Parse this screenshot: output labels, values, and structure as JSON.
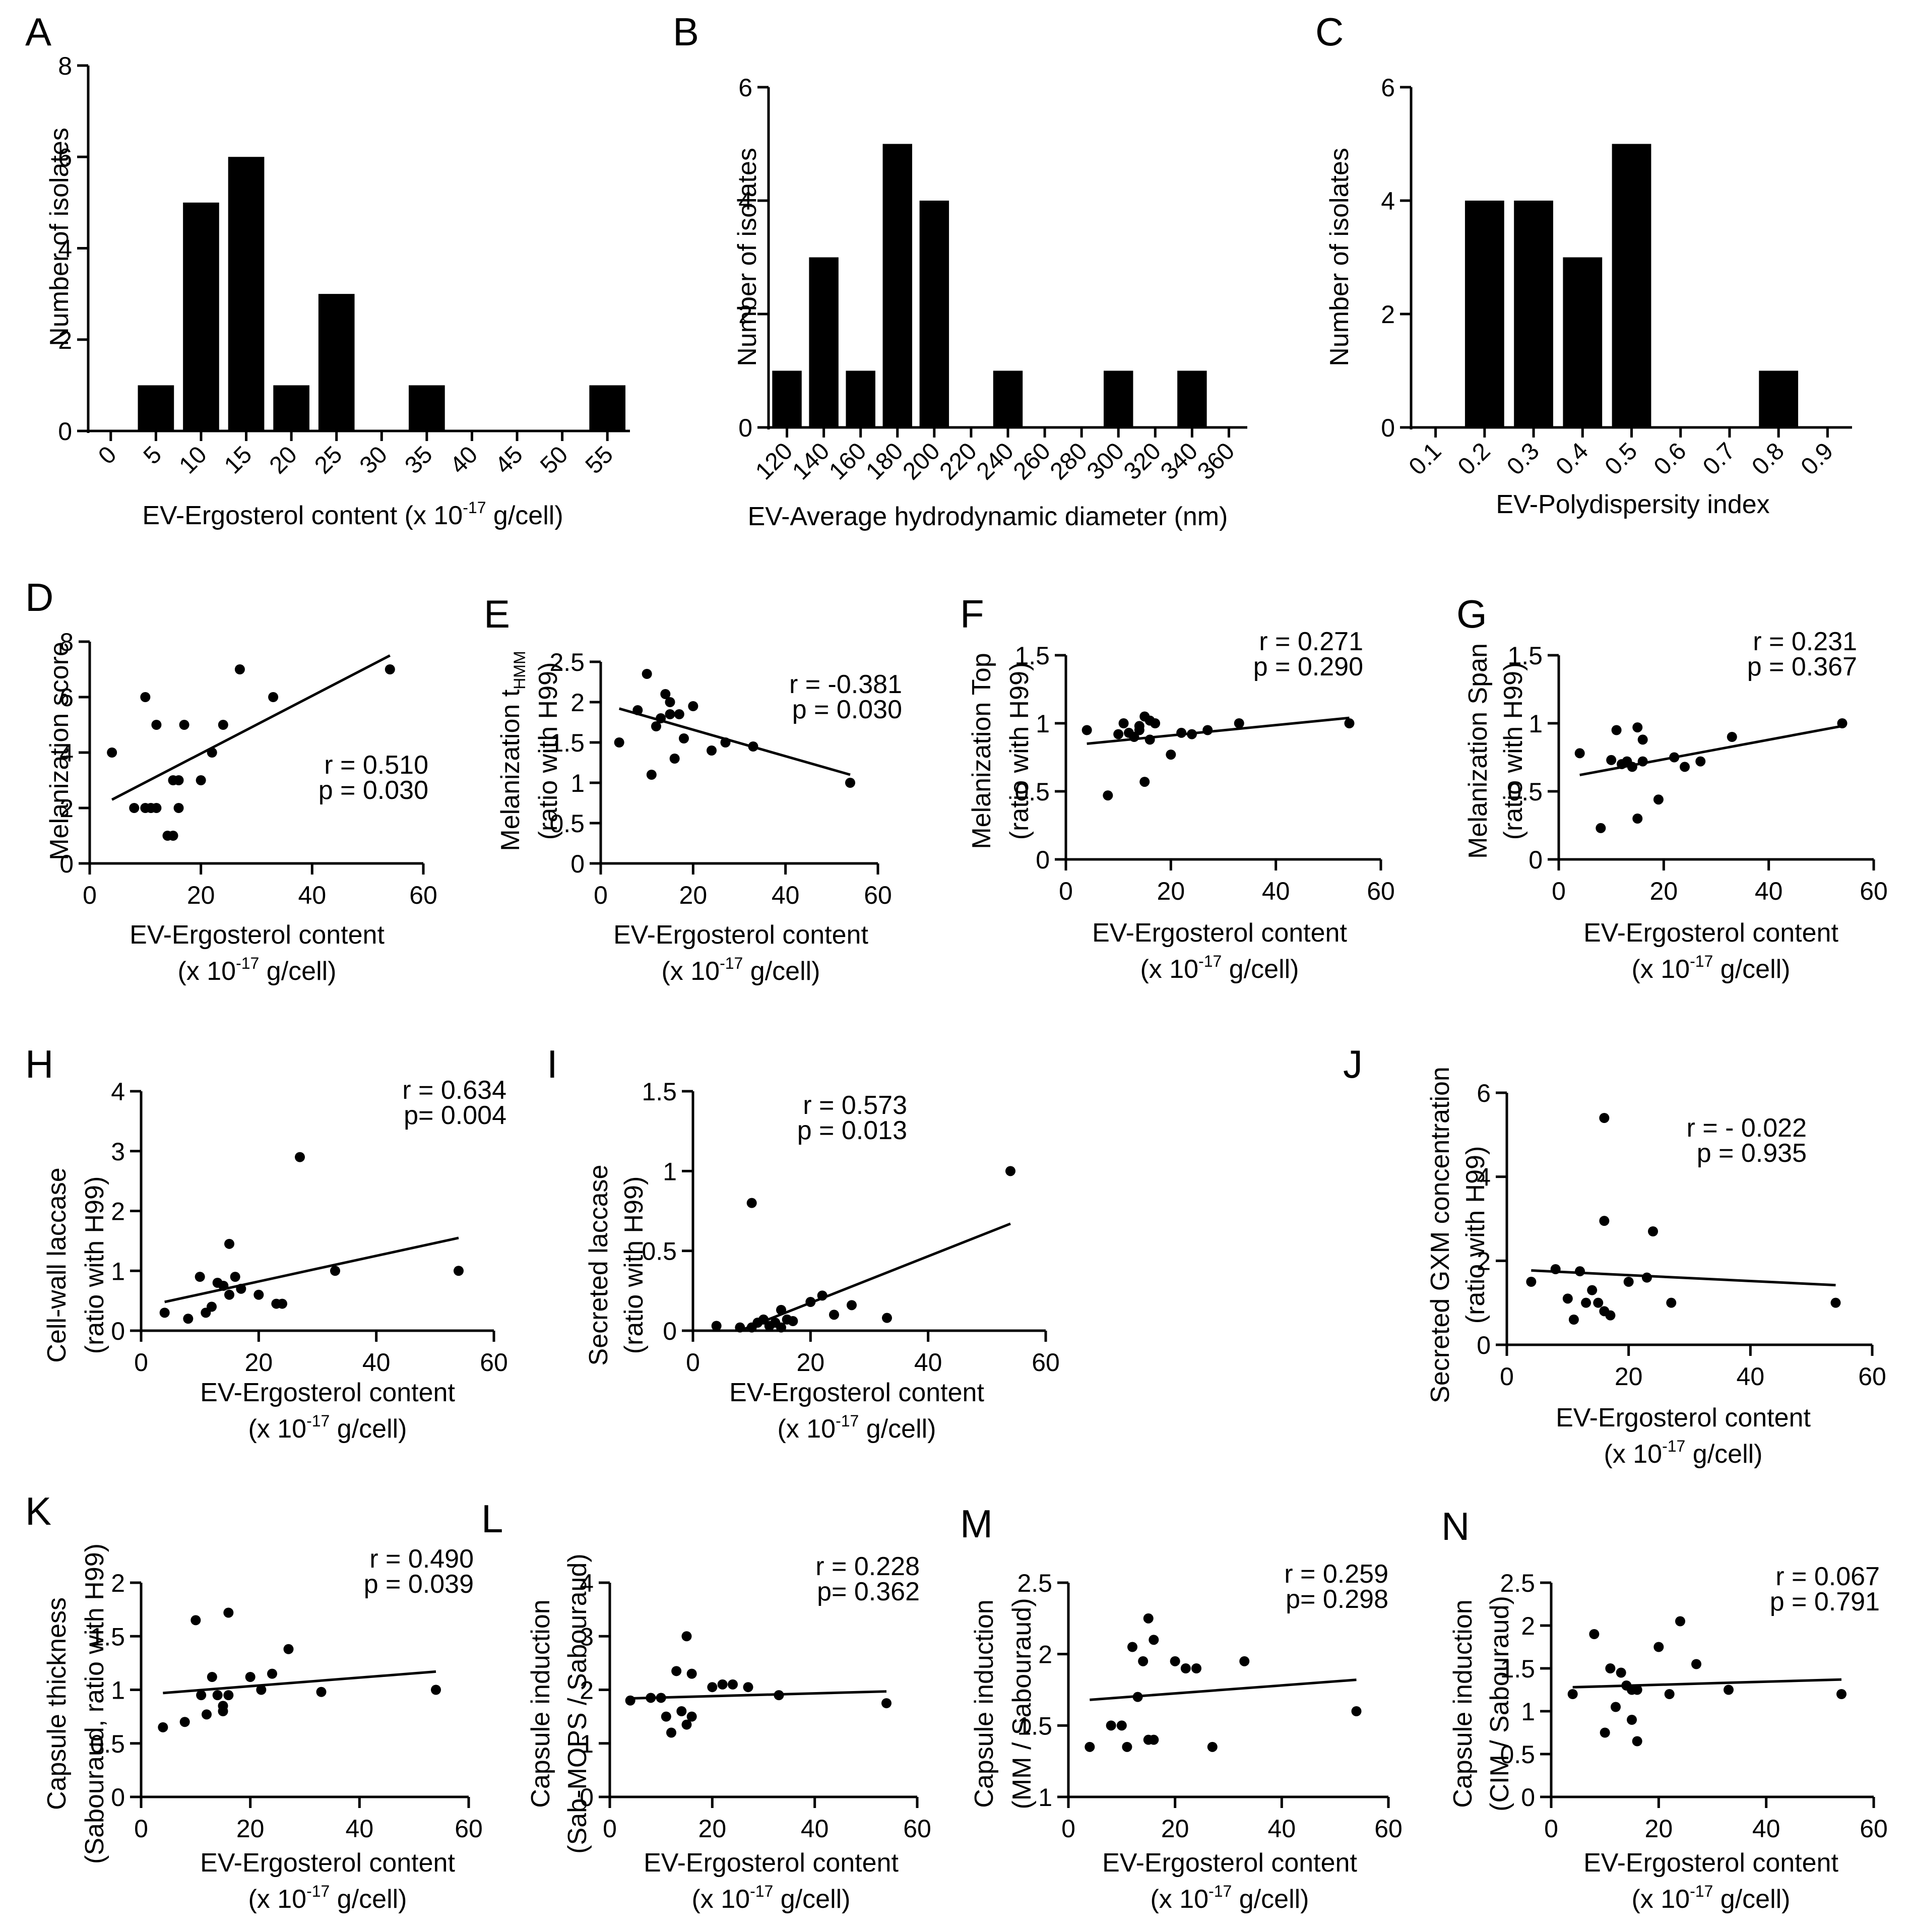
{
  "figure": {
    "background": "#ffffff",
    "ink": "#000000"
  },
  "chart_data": [
    {
      "panel": "A",
      "type": "bar",
      "categories": [
        "0",
        "5",
        "10",
        "15",
        "20",
        "25",
        "30",
        "35",
        "40",
        "45",
        "50",
        "55"
      ],
      "values": [
        0,
        1,
        5,
        6,
        1,
        3,
        0,
        1,
        0,
        0,
        0,
        1
      ],
      "ylim": [
        0,
        8
      ],
      "yticks": [
        0,
        2,
        4,
        6,
        8
      ],
      "ylabel": "Number of isolates",
      "xlabel_text": "EV-Ergosterol content (x 10",
      "xlabel_sup": "-17",
      "xlabel_tail": " g/cell)"
    },
    {
      "panel": "B",
      "type": "bar",
      "categories": [
        "120",
        "140",
        "160",
        "180",
        "200",
        "220",
        "240",
        "260",
        "280",
        "300",
        "320",
        "340",
        "360"
      ],
      "values": [
        1,
        3,
        1,
        5,
        4,
        0,
        1,
        0,
        0,
        1,
        0,
        1,
        0
      ],
      "ylim": [
        0,
        6
      ],
      "yticks": [
        0,
        2,
        4,
        6
      ],
      "ylabel": "Number of isolates",
      "xlabel_text": "EV-Average hydrodynamic diameter (nm)"
    },
    {
      "panel": "C",
      "type": "bar",
      "categories": [
        "0.1",
        "0.2",
        "0.3",
        "0.4",
        "0.5",
        "0.6",
        "0.7",
        "0.8",
        "0.9"
      ],
      "values": [
        0,
        4,
        4,
        3,
        5,
        0,
        0,
        1,
        0
      ],
      "ylim": [
        0,
        6
      ],
      "yticks": [
        0,
        2,
        4,
        6
      ],
      "ylabel": "Number of isolates",
      "xlabel_text": "EV-Polydispersity index"
    },
    {
      "panel": "D",
      "type": "scatter",
      "x": [
        4,
        8,
        10,
        11,
        12,
        14,
        15,
        15,
        16,
        16,
        17,
        20,
        22,
        24,
        27,
        33,
        54,
        10,
        12
      ],
      "y": [
        4,
        2,
        6,
        2,
        5,
        1,
        1,
        3,
        3,
        2,
        5,
        3,
        4,
        5,
        7,
        6,
        7,
        2,
        2
      ],
      "fit": [
        [
          4,
          2.3
        ],
        [
          54,
          7.5
        ]
      ],
      "xlim": [
        0,
        60
      ],
      "xticks": [
        0,
        20,
        40,
        60
      ],
      "ylim": [
        0,
        8
      ],
      "yticks": [
        0,
        2,
        4,
        6,
        8
      ],
      "ylabel": [
        "Melanization score"
      ],
      "r_text": "r = 0.510",
      "p_text": "p = 0.030",
      "xlabel_line1": "EV-Ergosterol content",
      "xlabel_line2_pre": "(x 10",
      "xlabel_line2_sup": "-17",
      "xlabel_line2_post": " g/cell)"
    },
    {
      "panel": "E",
      "type": "scatter",
      "x": [
        4,
        8,
        10,
        11,
        12,
        13,
        14,
        15,
        16,
        17,
        20,
        24,
        27,
        33,
        54,
        15,
        18
      ],
      "y": [
        1.5,
        1.9,
        2.35,
        1.1,
        1.7,
        1.8,
        2.1,
        1.85,
        1.3,
        1.85,
        1.95,
        1.4,
        1.5,
        1.45,
        1.0,
        2.0,
        1.55
      ],
      "fit": [
        [
          4,
          1.92
        ],
        [
          54,
          1.1
        ]
      ],
      "xlim": [
        0,
        60
      ],
      "xticks": [
        0,
        20,
        40,
        60
      ],
      "ylim": [
        0,
        2.5
      ],
      "yticks": [
        0,
        0.5,
        1,
        1.5,
        2,
        2.5
      ],
      "ylabel": [
        "Melanization t",
        "(ratio with H99)"
      ],
      "ylabel_sub": "HMM",
      "r_text": "r = -0.381",
      "p_text": "p = 0.030",
      "xlabel_line1": "EV-Ergosterol content",
      "xlabel_line2_pre": "(x 10",
      "xlabel_line2_sup": "-17",
      "xlabel_line2_post": " g/cell)"
    },
    {
      "panel": "F",
      "type": "scatter",
      "x": [
        4,
        8,
        10,
        11,
        12,
        13,
        14,
        15,
        15,
        16,
        17,
        20,
        22,
        24,
        27,
        33,
        54,
        14,
        16
      ],
      "y": [
        0.95,
        0.47,
        0.92,
        1.0,
        0.93,
        0.9,
        0.98,
        0.57,
        1.05,
        0.88,
        1.0,
        0.77,
        0.93,
        0.92,
        0.95,
        1.0,
        1.0,
        0.95,
        1.02
      ],
      "fit": [
        [
          4,
          0.85
        ],
        [
          54,
          1.04
        ]
      ],
      "xlim": [
        0,
        60
      ],
      "xticks": [
        0,
        20,
        40,
        60
      ],
      "ylim": [
        0,
        1.5
      ],
      "yticks": [
        0,
        0.5,
        1,
        1.5
      ],
      "ylabel": [
        "Melanization Top",
        "(ratio with H99)"
      ],
      "r_text": "r = 0.271",
      "p_text": "p = 0.290",
      "xlabel_line1": "EV-Ergosterol content",
      "xlabel_line2_pre": "(x 10",
      "xlabel_line2_sup": "-17",
      "xlabel_line2_post": " g/cell)"
    },
    {
      "panel": "G",
      "type": "scatter",
      "x": [
        4,
        8,
        10,
        11,
        12,
        13,
        14,
        15,
        15,
        16,
        16,
        19,
        22,
        24,
        27,
        33,
        54
      ],
      "y": [
        0.78,
        0.23,
        0.73,
        0.95,
        0.7,
        0.72,
        0.68,
        0.3,
        0.97,
        0.72,
        0.88,
        0.44,
        0.75,
        0.68,
        0.72,
        0.9,
        1.0
      ],
      "fit": [
        [
          4,
          0.62
        ],
        [
          54,
          0.98
        ]
      ],
      "xlim": [
        0,
        60
      ],
      "xticks": [
        0,
        20,
        40,
        60
      ],
      "ylim": [
        0,
        1.5
      ],
      "yticks": [
        0,
        0.5,
        1,
        1.5
      ],
      "ylabel": [
        "Melanization Span",
        "(ratio with H99)"
      ],
      "r_text": "r = 0.231",
      "p_text": "p = 0.367",
      "xlabel_line1": "EV-Ergosterol content",
      "xlabel_line2_pre": "(x 10",
      "xlabel_line2_sup": "-17",
      "xlabel_line2_post": " g/cell)"
    },
    {
      "panel": "H",
      "type": "scatter",
      "x": [
        4,
        8,
        10,
        11,
        12,
        13,
        14,
        15,
        15,
        16,
        17,
        20,
        23,
        24,
        27,
        33,
        54
      ],
      "y": [
        0.3,
        0.2,
        0.9,
        0.3,
        0.4,
        0.8,
        0.75,
        1.45,
        0.6,
        0.9,
        0.7,
        0.6,
        0.45,
        0.45,
        2.9,
        1.0,
        1.0
      ],
      "fit": [
        [
          4,
          0.48
        ],
        [
          54,
          1.55
        ]
      ],
      "xlim": [
        0,
        60
      ],
      "xticks": [
        0,
        20,
        40,
        60
      ],
      "ylim": [
        0,
        4
      ],
      "yticks": [
        0,
        1,
        2,
        3,
        4
      ],
      "ylabel": [
        "Cell-wall laccase",
        "(ratio with H99)"
      ],
      "r_text": "r = 0.634",
      "p_text": "p= 0.004",
      "xlabel_line1": "EV-Ergosterol content",
      "xlabel_line2_pre": "(x 10",
      "xlabel_line2_sup": "-17",
      "xlabel_line2_post": " g/cell)"
    },
    {
      "panel": "I",
      "type": "scatter",
      "x": [
        4,
        8,
        10,
        10,
        11,
        12,
        13,
        14,
        15,
        15,
        16,
        17,
        20,
        22,
        24,
        27,
        33,
        54
      ],
      "y": [
        0.03,
        0.02,
        0.8,
        0.02,
        0.05,
        0.07,
        0.03,
        0.05,
        0.13,
        0.02,
        0.07,
        0.06,
        0.18,
        0.22,
        0.1,
        0.16,
        0.08,
        1.0
      ],
      "fit": [
        [
          8,
          0.0
        ],
        [
          54,
          0.67
        ]
      ],
      "xlim": [
        0,
        60
      ],
      "xticks": [
        0,
        20,
        40,
        60
      ],
      "ylim": [
        0,
        1.5
      ],
      "yticks": [
        0,
        0.5,
        1,
        1.5
      ],
      "ylabel": [
        "Secreted laccase",
        "(ratio with H99)"
      ],
      "r_text": "r = 0.573",
      "p_text": "p = 0.013",
      "xlabel_line1": "EV-Ergosterol content",
      "xlabel_line2_pre": "(x 10",
      "xlabel_line2_sup": "-17",
      "xlabel_line2_post": " g/cell)"
    },
    {
      "panel": "J",
      "type": "scatter",
      "x": [
        4,
        8,
        10,
        11,
        12,
        13,
        14,
        15,
        16,
        16,
        17,
        20,
        23,
        24,
        27,
        54,
        16
      ],
      "y": [
        1.5,
        1.8,
        1.1,
        0.6,
        1.75,
        1.0,
        1.3,
        1.0,
        5.4,
        2.95,
        0.7,
        1.5,
        1.6,
        2.7,
        1.0,
        1.0,
        0.8
      ],
      "fit": [
        [
          4,
          1.77
        ],
        [
          54,
          1.42
        ]
      ],
      "xlim": [
        0,
        60
      ],
      "xticks": [
        0,
        20,
        40,
        60
      ],
      "ylim": [
        0,
        6
      ],
      "yticks": [
        0,
        2,
        4,
        6
      ],
      "ylabel": [
        "Secreted GXM concentration",
        "(ratio with H99)"
      ],
      "r_text": "r = - 0.022",
      "p_text": "p = 0.935",
      "xlabel_line1": "EV-Ergosterol content",
      "xlabel_line2_pre": "(x 10",
      "xlabel_line2_sup": "-17",
      "xlabel_line2_post": " g/cell)"
    },
    {
      "panel": "K",
      "type": "scatter",
      "x": [
        4,
        8,
        10,
        11,
        12,
        13,
        14,
        15,
        15,
        16,
        16,
        20,
        22,
        24,
        27,
        33,
        54
      ],
      "y": [
        0.65,
        0.7,
        1.65,
        0.95,
        0.77,
        1.12,
        0.95,
        0.85,
        0.8,
        1.72,
        0.95,
        1.12,
        1.0,
        1.15,
        1.38,
        0.98,
        1.0
      ],
      "fit": [
        [
          4,
          0.97
        ],
        [
          54,
          1.17
        ]
      ],
      "xlim": [
        0,
        60
      ],
      "xticks": [
        0,
        20,
        40,
        60
      ],
      "ylim": [
        0,
        2
      ],
      "yticks": [
        0,
        0.5,
        1,
        1.5,
        2
      ],
      "ylabel": [
        "Capsule thickness",
        "(Sabouraud, ratio with H99)"
      ],
      "r_text": "r = 0.490",
      "p_text": "p = 0.039",
      "xlabel_line1": "EV-Ergosterol content",
      "xlabel_line2_pre": "(x 10",
      "xlabel_line2_sup": "-17",
      "xlabel_line2_post": " g/cell)"
    },
    {
      "panel": "L",
      "type": "scatter",
      "x": [
        4,
        8,
        10,
        11,
        12,
        13,
        14,
        15,
        15,
        16,
        16,
        20,
        22,
        24,
        27,
        33,
        54
      ],
      "y": [
        1.8,
        1.85,
        1.85,
        1.5,
        1.2,
        2.35,
        1.6,
        3.0,
        1.35,
        1.5,
        2.3,
        2.05,
        2.1,
        2.1,
        2.05,
        1.9,
        1.75
      ],
      "fit": [
        [
          4,
          1.84
        ],
        [
          54,
          1.97
        ]
      ],
      "xlim": [
        0,
        60
      ],
      "xticks": [
        0,
        20,
        40,
        60
      ],
      "ylim": [
        0,
        4
      ],
      "yticks": [
        0,
        1,
        2,
        3,
        4
      ],
      "ylabel": [
        "Capsule induction",
        "(Sab-MOPS / Sabouraud)"
      ],
      "r_text": "r = 0.228",
      "p_text": "p= 0.362",
      "xlabel_line1": "EV-Ergosterol content",
      "xlabel_line2_pre": "(x 10",
      "xlabel_line2_sup": "-17",
      "xlabel_line2_post": " g/cell)"
    },
    {
      "panel": "M",
      "type": "scatter",
      "x": [
        4,
        8,
        10,
        11,
        12,
        13,
        14,
        15,
        15,
        16,
        16,
        20,
        22,
        24,
        27,
        33,
        54
      ],
      "y": [
        1.35,
        1.5,
        1.5,
        1.35,
        2.05,
        1.7,
        1.95,
        2.25,
        1.4,
        2.1,
        1.4,
        1.95,
        1.9,
        1.9,
        1.35,
        1.95,
        1.6
      ],
      "fit": [
        [
          4,
          1.68
        ],
        [
          54,
          1.82
        ]
      ],
      "xlim": [
        0,
        60
      ],
      "xticks": [
        0,
        20,
        40,
        60
      ],
      "ylim": [
        1,
        2.5
      ],
      "yticks": [
        1,
        1.5,
        2,
        2.5
      ],
      "ylabel": [
        "Capsule induction",
        "(MM / Sabouraud)"
      ],
      "r_text": "r = 0.259",
      "p_text": "p= 0.298",
      "xlabel_line1": "EV-Ergosterol content",
      "xlabel_line2_pre": "(x 10",
      "xlabel_line2_sup": "-17",
      "xlabel_line2_post": " g/cell)"
    },
    {
      "panel": "N",
      "type": "scatter",
      "x": [
        4,
        8,
        10,
        11,
        12,
        13,
        14,
        15,
        15,
        16,
        16,
        20,
        22,
        24,
        27,
        33,
        54
      ],
      "y": [
        1.2,
        1.9,
        0.75,
        1.5,
        1.05,
        1.45,
        1.3,
        1.25,
        0.9,
        1.25,
        0.65,
        1.75,
        1.2,
        2.05,
        1.55,
        1.25,
        1.2
      ],
      "fit": [
        [
          4,
          1.28
        ],
        [
          54,
          1.37
        ]
      ],
      "xlim": [
        0,
        60
      ],
      "xticks": [
        0,
        20,
        40,
        60
      ],
      "ylim": [
        0,
        2.5
      ],
      "yticks": [
        0,
        0.5,
        1,
        1.5,
        2,
        2.5
      ],
      "ylabel": [
        "Capsule induction",
        "(CIM / Sabouraud)"
      ],
      "r_text": "r = 0.067",
      "p_text": "p = 0.791",
      "xlabel_line1": "EV-Ergosterol content",
      "xlabel_line2_pre": "(x 10",
      "xlabel_line2_sup": "-17",
      "xlabel_line2_post": " g/cell)"
    }
  ]
}
